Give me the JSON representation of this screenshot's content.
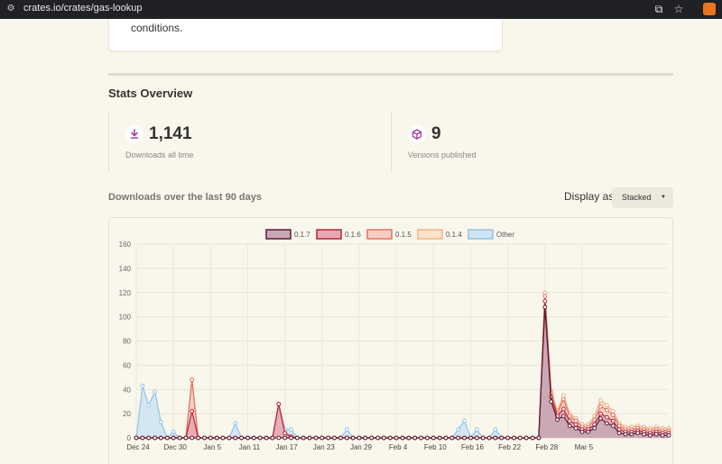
{
  "browser": {
    "url": "crates.io/crates/gas-lookup"
  },
  "prev_card": {
    "text": "conditions."
  },
  "stats": {
    "title": "Stats Overview",
    "items": [
      {
        "value": "1,141",
        "label": "Downloads all time",
        "icon": "download-icon"
      },
      {
        "value": "9",
        "label": "Versions published",
        "icon": "package-icon"
      }
    ]
  },
  "downloads": {
    "title": "Downloads over the last 90 days",
    "display_label": "Display as",
    "display_value": "Stacked"
  },
  "chart_data": {
    "type": "area",
    "stacked": true,
    "ylim": [
      0,
      160
    ],
    "yticks": [
      "0",
      "20",
      "40",
      "60",
      "80",
      "100",
      "120",
      "140",
      "160"
    ],
    "xtick_labels": [
      "Dec 24",
      "Dec 30",
      "Jan 5",
      "Jan 11",
      "Jan 17",
      "Jan 23",
      "Jan 29",
      "Feb 4",
      "Feb 10",
      "Feb 16",
      "Feb 22",
      "Feb 28",
      "Mar 5"
    ],
    "grid": true,
    "legend_placement": "top",
    "series": [
      {
        "name": "0.1.7",
        "color": "#5d1a37",
        "fill": "#c8a8b4",
        "values": [
          0,
          0,
          0,
          0,
          0,
          0,
          0,
          0,
          0,
          0,
          0,
          0,
          0,
          0,
          0,
          0,
          0,
          0,
          0,
          0,
          0,
          0,
          0,
          0,
          0,
          0,
          0,
          0,
          0,
          0,
          0,
          0,
          0,
          0,
          0,
          0,
          0,
          0,
          0,
          0,
          0,
          0,
          0,
          0,
          0,
          0,
          0,
          0,
          0,
          0,
          0,
          0,
          0,
          0,
          0,
          0,
          0,
          0,
          0,
          0,
          0,
          0,
          0,
          0,
          0,
          0,
          108,
          30,
          15,
          18,
          10,
          8,
          5,
          5,
          8,
          16,
          12,
          10,
          4,
          3,
          3,
          4,
          3,
          2,
          3,
          2,
          2
        ]
      },
      {
        "name": "0.1.6",
        "color": "#b5253a",
        "fill": "#e8aab2",
        "values": [
          0,
          0,
          0,
          0,
          0,
          0,
          0,
          0,
          0,
          22,
          0,
          0,
          0,
          0,
          0,
          0,
          0,
          0,
          0,
          0,
          0,
          0,
          0,
          28,
          4,
          1,
          0,
          0,
          0,
          0,
          0,
          0,
          0,
          0,
          0,
          0,
          0,
          0,
          0,
          0,
          0,
          0,
          0,
          0,
          0,
          0,
          0,
          0,
          0,
          0,
          0,
          0,
          0,
          0,
          0,
          0,
          0,
          0,
          0,
          0,
          0,
          0,
          0,
          0,
          0,
          0,
          5,
          4,
          3,
          6,
          4,
          3,
          2,
          2,
          3,
          4,
          5,
          4,
          3,
          2,
          2,
          2,
          2,
          2,
          2,
          2,
          2
        ]
      },
      {
        "name": "0.1.5",
        "color": "#e6735f",
        "fill": "#f5cfc4",
        "values": [
          0,
          0,
          0,
          0,
          0,
          0,
          0,
          0,
          0,
          26,
          0,
          0,
          0,
          0,
          0,
          0,
          0,
          0,
          0,
          0,
          0,
          0,
          0,
          0,
          0,
          0,
          0,
          0,
          0,
          0,
          0,
          0,
          0,
          0,
          0,
          0,
          0,
          0,
          0,
          0,
          0,
          0,
          0,
          0,
          0,
          0,
          0,
          0,
          0,
          0,
          0,
          0,
          0,
          0,
          0,
          0,
          0,
          0,
          0,
          0,
          0,
          0,
          0,
          0,
          0,
          0,
          4,
          3,
          2,
          8,
          4,
          3,
          2,
          2,
          4,
          6,
          6,
          5,
          3,
          2,
          2,
          2,
          2,
          2,
          2,
          2,
          2
        ]
      },
      {
        "name": "0.1.4",
        "color": "#f5b27e",
        "fill": "#fbe3ce",
        "values": [
          0,
          0,
          0,
          0,
          0,
          0,
          0,
          0,
          0,
          0,
          0,
          0,
          0,
          0,
          0,
          0,
          0,
          0,
          0,
          0,
          0,
          0,
          0,
          0,
          0,
          0,
          0,
          0,
          0,
          0,
          0,
          0,
          0,
          0,
          0,
          0,
          0,
          0,
          0,
          0,
          0,
          0,
          0,
          0,
          0,
          0,
          0,
          0,
          0,
          0,
          0,
          0,
          0,
          0,
          0,
          0,
          0,
          0,
          0,
          0,
          0,
          0,
          0,
          0,
          0,
          0,
          3,
          2,
          2,
          3,
          2,
          2,
          2,
          2,
          3,
          5,
          4,
          3,
          2,
          2,
          2,
          2,
          2,
          2,
          2,
          2,
          2
        ]
      },
      {
        "name": "Other",
        "color": "#8fc5e8",
        "fill": "#cfe4f2",
        "values": [
          0,
          43,
          27,
          38,
          13,
          0,
          5,
          0,
          0,
          0,
          0,
          0,
          0,
          0,
          0,
          0,
          12,
          0,
          0,
          0,
          0,
          0,
          0,
          0,
          3,
          6,
          0,
          0,
          0,
          0,
          0,
          0,
          0,
          0,
          7,
          0,
          0,
          0,
          0,
          0,
          0,
          0,
          0,
          0,
          0,
          0,
          0,
          0,
          0,
          0,
          0,
          0,
          7,
          14,
          0,
          7,
          0,
          0,
          7,
          0,
          0,
          0,
          0,
          0,
          0,
          0,
          0,
          0,
          0,
          0,
          0,
          0,
          0,
          0,
          0,
          0,
          0,
          0,
          0,
          0,
          0,
          0,
          0,
          0,
          0,
          0,
          0
        ]
      }
    ]
  }
}
